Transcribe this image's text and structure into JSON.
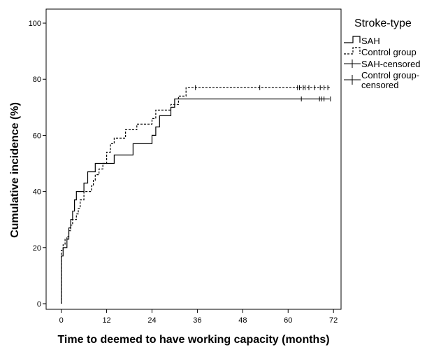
{
  "chart_data": {
    "type": "line",
    "subtype": "step / cumulative incidence",
    "xlabel": "Time to deemed to have working capacity (months)",
    "ylabel": "Cumulative incidence (%)",
    "xlim": [
      -4,
      74
    ],
    "ylim": [
      -2,
      105
    ],
    "xticks": [
      0,
      12,
      24,
      36,
      48,
      60,
      72
    ],
    "yticks": [
      0,
      20,
      40,
      60,
      80,
      100
    ],
    "grid": false,
    "legend": {
      "title": "Stroke-type",
      "placement": "right-outside",
      "entries": [
        {
          "label": "SAH",
          "style": "solid-step"
        },
        {
          "label": "Control group",
          "style": "dashed-step"
        },
        {
          "label": "SAH-censored",
          "style": "solid-censor-mark"
        },
        {
          "label": "Control group-censored",
          "lines": [
            "Control group-",
            "censored"
          ],
          "style": "dashed-censor-mark"
        }
      ]
    },
    "series": [
      {
        "name": "SAH",
        "style": "solid",
        "points": [
          [
            0,
            0
          ],
          [
            0,
            17
          ],
          [
            0.5,
            20
          ],
          [
            1.5,
            23
          ],
          [
            2,
            27
          ],
          [
            2.5,
            30
          ],
          [
            3,
            33
          ],
          [
            3.5,
            37
          ],
          [
            4,
            40
          ],
          [
            6,
            43
          ],
          [
            7,
            47
          ],
          [
            9,
            50
          ],
          [
            14,
            53
          ],
          [
            19,
            57
          ],
          [
            24,
            60
          ],
          [
            25,
            63
          ],
          [
            26,
            67
          ],
          [
            29,
            70
          ],
          [
            30,
            73
          ],
          [
            71,
            73
          ]
        ],
        "censored": [
          63.5,
          68.3,
          68.8,
          69.5,
          71.2
        ]
      },
      {
        "name": "Control group",
        "style": "dashed",
        "points": [
          [
            0,
            0
          ],
          [
            0,
            19
          ],
          [
            0.5,
            21
          ],
          [
            1,
            23
          ],
          [
            1.5,
            24
          ],
          [
            2,
            26
          ],
          [
            2.5,
            28
          ],
          [
            3,
            30
          ],
          [
            4,
            32
          ],
          [
            4.5,
            34
          ],
          [
            5,
            37
          ],
          [
            6,
            40
          ],
          [
            8,
            42
          ],
          [
            8.5,
            44
          ],
          [
            9,
            46
          ],
          [
            10,
            48
          ],
          [
            11,
            50
          ],
          [
            12,
            54
          ],
          [
            13,
            57
          ],
          [
            14,
            59
          ],
          [
            17,
            62
          ],
          [
            20,
            64
          ],
          [
            24,
            66
          ],
          [
            25,
            69
          ],
          [
            29,
            71
          ],
          [
            31,
            74
          ],
          [
            33,
            77
          ],
          [
            71,
            77
          ]
        ],
        "censored": [
          35.5,
          52.5,
          62.5,
          63,
          64,
          64.5,
          65.5,
          67,
          68.5,
          69.5,
          70.5
        ]
      }
    ]
  }
}
